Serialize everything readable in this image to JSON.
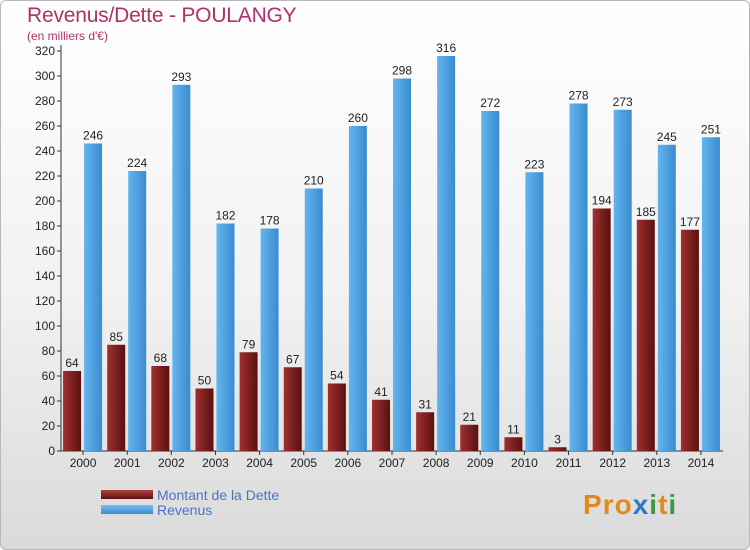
{
  "title": "Revenus/Dette - POULANGY",
  "subtitle": "(en milliers d'€)",
  "brand": "Proxiti",
  "colors": {
    "dette": "#7a1c1c",
    "revenus": "#4aa0e0",
    "title": "#b0306a",
    "legend_text": "#4a73c8"
  },
  "legend": [
    {
      "label": "Montant de la Dette",
      "color": "#7a1c1c"
    },
    {
      "label": "Revenus",
      "color": "#4aa0e0"
    }
  ],
  "chart_data": {
    "type": "bar",
    "title": "Revenus/Dette - POULANGY",
    "subtitle": "(en milliers d'€)",
    "xlabel": "",
    "ylabel": "",
    "ylim": [
      0,
      320
    ],
    "yticks": [
      0,
      20,
      40,
      60,
      80,
      100,
      120,
      140,
      160,
      180,
      200,
      220,
      240,
      260,
      280,
      300,
      320
    ],
    "grid": false,
    "legend_position": "bottom-left",
    "categories": [
      "2000",
      "2001",
      "2002",
      "2003",
      "2004",
      "2005",
      "2006",
      "2007",
      "2008",
      "2009",
      "2010",
      "2011",
      "2012",
      "2013",
      "2014"
    ],
    "series": [
      {
        "name": "Montant de la Dette",
        "color": "#7a1c1c",
        "values": [
          64,
          85,
          68,
          50,
          79,
          67,
          54,
          41,
          31,
          21,
          11,
          3,
          194,
          185,
          177
        ]
      },
      {
        "name": "Revenus",
        "color": "#4aa0e0",
        "values": [
          246,
          224,
          293,
          182,
          178,
          210,
          260,
          298,
          316,
          272,
          223,
          278,
          273,
          245,
          251
        ]
      }
    ]
  }
}
